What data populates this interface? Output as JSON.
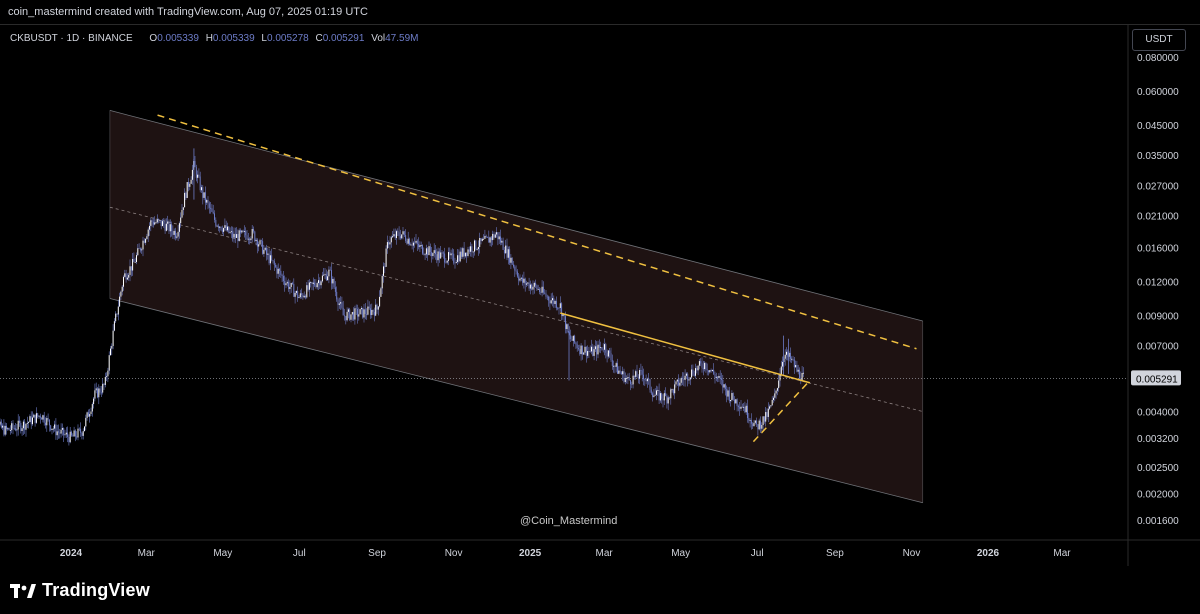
{
  "header": {
    "credit": "coin_mastermind created with TradingView.com, Aug 07, 2025 01:19 UTC"
  },
  "legend": {
    "symbol": "CKBUSDT · 1D · BINANCE",
    "open_label": "O",
    "open": "0.005339",
    "high_label": "H",
    "high": "0.005339",
    "low_label": "L",
    "low": "0.005278",
    "close_label": "C",
    "close": "0.005291",
    "vol_label": "Vol",
    "vol": "47.59M"
  },
  "currency_button": "USDT",
  "watermark": "@Coin_Mastermind",
  "footer": {
    "brand": "TradingView"
  },
  "colors": {
    "background": "#000000",
    "channel_fill": "#1e1212",
    "channel_border": "#9aa0a8",
    "candle": "#6d7cc8",
    "trendline": "#f0c040",
    "price_marker": "#d1d4dc"
  },
  "chart_data": {
    "type": "candlestick",
    "symbol": "CKBUSDT",
    "interval": "1D",
    "exchange": "BINANCE",
    "y_scale": "log",
    "ylim": [
      0.00135,
      0.105
    ],
    "y_ticks": [
      "0.080000",
      "0.060000",
      "0.045000",
      "0.035000",
      "0.027000",
      "0.021000",
      "0.016000",
      "0.012000",
      "0.009000",
      "0.007000",
      "0.005291",
      "0.004000",
      "0.003200",
      "0.002500",
      "0.002000",
      "0.001600"
    ],
    "current_price": "0.005291",
    "x_ticks": [
      {
        "label": "2024",
        "date": "2024-01-01",
        "bold": true
      },
      {
        "label": "Mar",
        "date": "2024-03-01"
      },
      {
        "label": "May",
        "date": "2024-05-01"
      },
      {
        "label": "Jul",
        "date": "2024-07-01"
      },
      {
        "label": "Sep",
        "date": "2024-09-01"
      },
      {
        "label": "Nov",
        "date": "2024-11-01"
      },
      {
        "label": "2025",
        "date": "2025-01-01",
        "bold": true
      },
      {
        "label": "Mar",
        "date": "2025-03-01"
      },
      {
        "label": "May",
        "date": "2025-05-01"
      },
      {
        "label": "Jul",
        "date": "2025-07-01"
      },
      {
        "label": "Sep",
        "date": "2025-09-01"
      },
      {
        "label": "Nov",
        "date": "2025-11-01"
      },
      {
        "label": "2026",
        "date": "2026-01-01",
        "bold": true
      },
      {
        "label": "Mar",
        "date": "2026-03-01"
      }
    ],
    "price_path": [
      [
        "2023-10-25",
        0.00375
      ],
      [
        "2023-11-10",
        0.0034
      ],
      [
        "2023-11-25",
        0.0036
      ],
      [
        "2023-12-08",
        0.0039
      ],
      [
        "2023-12-20",
        0.0034
      ],
      [
        "2024-01-01",
        0.0032
      ],
      [
        "2024-01-10",
        0.0034
      ],
      [
        "2024-01-20",
        0.0046
      ],
      [
        "2024-01-28",
        0.005
      ],
      [
        "2024-02-05",
        0.0085
      ],
      [
        "2024-02-12",
        0.0125
      ],
      [
        "2024-02-20",
        0.014
      ],
      [
        "2024-03-05",
        0.02
      ],
      [
        "2024-03-15",
        0.0195
      ],
      [
        "2024-03-25",
        0.018
      ],
      [
        "2024-04-01",
        0.025
      ],
      [
        "2024-04-08",
        0.032
      ],
      [
        "2024-04-15",
        0.025
      ],
      [
        "2024-04-25",
        0.02
      ],
      [
        "2024-05-10",
        0.0175
      ],
      [
        "2024-05-25",
        0.018
      ],
      [
        "2024-06-05",
        0.015
      ],
      [
        "2024-06-20",
        0.012
      ],
      [
        "2024-07-01",
        0.0105
      ],
      [
        "2024-07-15",
        0.012
      ],
      [
        "2024-07-25",
        0.013
      ],
      [
        "2024-08-05",
        0.009
      ],
      [
        "2024-08-20",
        0.0092
      ],
      [
        "2024-09-01",
        0.0095
      ],
      [
        "2024-09-10",
        0.017
      ],
      [
        "2024-09-20",
        0.018
      ],
      [
        "2024-10-05",
        0.016
      ],
      [
        "2024-10-20",
        0.015
      ],
      [
        "2024-11-01",
        0.0145
      ],
      [
        "2024-11-15",
        0.016
      ],
      [
        "2024-11-28",
        0.017
      ],
      [
        "2024-12-05",
        0.018
      ],
      [
        "2024-12-15",
        0.015
      ],
      [
        "2024-12-25",
        0.012
      ],
      [
        "2025-01-05",
        0.0115
      ],
      [
        "2025-01-15",
        0.0105
      ],
      [
        "2025-01-25",
        0.0098
      ],
      [
        "2025-02-01",
        0.0075
      ],
      [
        "2025-02-10",
        0.0068
      ],
      [
        "2025-02-20",
        0.0066
      ],
      [
        "2025-03-01",
        0.007
      ],
      [
        "2025-03-10",
        0.0058
      ],
      [
        "2025-03-20",
        0.0052
      ],
      [
        "2025-04-01",
        0.0055
      ],
      [
        "2025-04-10",
        0.0046
      ],
      [
        "2025-04-20",
        0.0045
      ],
      [
        "2025-05-01",
        0.0052
      ],
      [
        "2025-05-10",
        0.0056
      ],
      [
        "2025-05-20",
        0.006
      ],
      [
        "2025-06-01",
        0.0052
      ],
      [
        "2025-06-10",
        0.0045
      ],
      [
        "2025-06-20",
        0.0042
      ],
      [
        "2025-06-30",
        0.0035
      ],
      [
        "2025-07-08",
        0.0038
      ],
      [
        "2025-07-15",
        0.0045
      ],
      [
        "2025-07-22",
        0.0065
      ],
      [
        "2025-07-28",
        0.0062
      ],
      [
        "2025-08-02",
        0.0056
      ],
      [
        "2025-08-07",
        0.005291
      ]
    ],
    "channel": {
      "start_date": "2024-02-01",
      "end_date": "2025-11-10",
      "upper": [
        0.051,
        0.0086
      ],
      "lower": [
        0.0104,
        0.00185
      ],
      "mid": [
        0.0225,
        0.004
      ]
    },
    "trendlines": [
      {
        "style": "dashed",
        "points": [
          [
            "2024-03-10",
            0.049
          ],
          [
            "2025-11-05",
            0.0068
          ]
        ]
      },
      {
        "style": "solid",
        "points": [
          [
            "2025-01-25",
            0.0092
          ],
          [
            "2025-08-12",
            0.0051
          ]
        ]
      },
      {
        "style": "dashed",
        "points": [
          [
            "2025-06-28",
            0.0031
          ],
          [
            "2025-08-12",
            0.0052
          ]
        ]
      }
    ]
  }
}
